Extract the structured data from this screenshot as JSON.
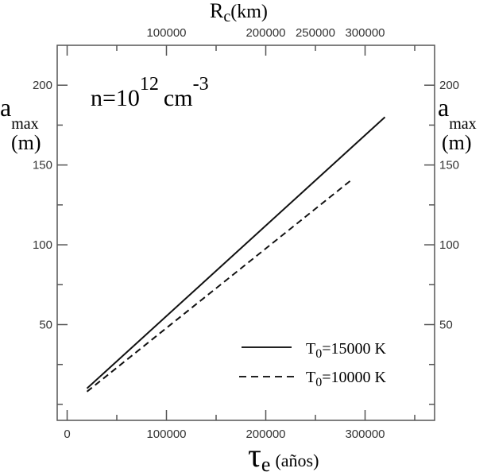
{
  "chart_data": {
    "type": "line",
    "annotation": {
      "base": "n=10",
      "exponent": "12",
      "unit": "cm",
      "unit_exponent": "-3"
    },
    "xlabel": {
      "symbol": "τ",
      "subscript": "e",
      "unit": "(años)"
    },
    "x2label": {
      "symbol": "R",
      "subscript": "c",
      "unit": "(km)"
    },
    "ylabel": {
      "symbol": "a",
      "subscript": "max",
      "unit": "(m)"
    },
    "xlim": [
      -10000,
      370000
    ],
    "ylim": [
      -10,
      225
    ],
    "x_ticks": [
      0,
      100000,
      200000,
      300000
    ],
    "x_tick_labels": [
      "0",
      "100000",
      "200000",
      "300000"
    ],
    "x_minor_ticks": [
      50000,
      150000,
      250000,
      350000
    ],
    "x2_ticks": [
      100000,
      200000,
      250000,
      300000
    ],
    "x2_tick_labels": [
      "100000",
      "200000",
      "250000",
      "300000"
    ],
    "y_ticks": [
      50,
      100,
      150,
      200
    ],
    "y_tick_labels": [
      "50",
      "100",
      "150",
      "200"
    ],
    "y_minor_ticks": [
      0,
      25,
      75,
      125,
      175
    ],
    "series": [
      {
        "style": "solid",
        "legend_label": "T",
        "legend_sub": "0",
        "legend_value": "=15000 K",
        "x": [
          20000,
          320000
        ],
        "y": [
          10,
          180
        ]
      },
      {
        "style": "dashed",
        "legend_label": "T",
        "legend_sub": "0",
        "legend_value": "=10000 K",
        "x": [
          20000,
          287000
        ],
        "y": [
          8,
          141
        ]
      }
    ],
    "legend_position": "bottom-right",
    "grid": false
  }
}
